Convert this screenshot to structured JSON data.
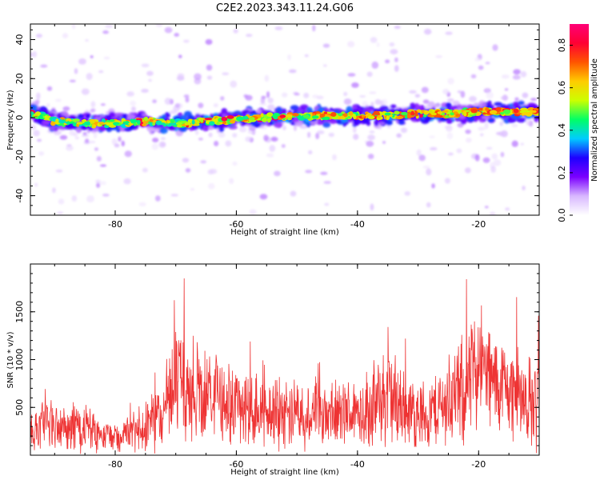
{
  "title": "C2E2.2023.343.11.24.G06",
  "chart_data": [
    {
      "type": "heatmap",
      "xlabel": "Height of straight line (km)",
      "ylabel": "Frequency (Hz)",
      "xlim": [
        -94,
        -10
      ],
      "ylim": [
        -50,
        48
      ],
      "xticks": [
        -80,
        -60,
        -40,
        -20
      ],
      "yticks": [
        -40,
        -20,
        0,
        20,
        40
      ],
      "colorbar": {
        "label": "Normalized spectral amplitude",
        "range": [
          0,
          0.9
        ],
        "ticks": [
          0.0,
          0.2,
          0.4,
          0.6,
          0.8
        ],
        "colors": [
          "#ffffff",
          "#d8b8ff",
          "#7b00ff",
          "#1e00ff",
          "#00ccff",
          "#00ff66",
          "#ccff00",
          "#ffcc00",
          "#ff5500",
          "#ff0033",
          "#ff0077"
        ]
      },
      "ridge": {
        "description_points_x": [
          -93,
          -90,
          -85,
          -80,
          -75,
          -70,
          -65,
          -60,
          -55,
          -50,
          -45,
          -40,
          -35,
          -30,
          -25,
          -20,
          -15,
          -10
        ],
        "frequency_hz": [
          2,
          -2,
          -3,
          -3,
          -2,
          -3,
          -2,
          -1,
          0,
          1,
          1,
          1,
          1,
          2,
          2,
          3,
          3,
          3
        ]
      }
    },
    {
      "type": "line",
      "xlabel": "Height of straight line (km)",
      "ylabel": "SNR (10 * v/v)",
      "xlim": [
        -94,
        -10
      ],
      "ylim": [
        0,
        2000
      ],
      "xticks": [
        -80,
        -60,
        -40,
        -20
      ],
      "yticks": [
        500,
        1000,
        1500
      ],
      "line_color": "#ee3333",
      "envelope": {
        "x": [
          -94,
          -90,
          -85,
          -82,
          -78,
          -75,
          -72,
          -70,
          -68,
          -65,
          -62,
          -60,
          -57,
          -55,
          -52,
          -50,
          -47,
          -45,
          -42,
          -40,
          -37,
          -35,
          -32,
          -30,
          -28,
          -25,
          -22,
          -20,
          -18,
          -15,
          -12,
          -10
        ],
        "mean": [
          260,
          300,
          260,
          200,
          220,
          320,
          450,
          800,
          620,
          650,
          560,
          540,
          460,
          430,
          470,
          480,
          420,
          400,
          430,
          460,
          520,
          620,
          480,
          420,
          440,
          560,
          700,
          1000,
          760,
          700,
          560,
          560
        ],
        "amp": [
          250,
          300,
          260,
          180,
          200,
          280,
          420,
          650,
          520,
          520,
          460,
          440,
          400,
          380,
          400,
          420,
          380,
          360,
          380,
          420,
          480,
          600,
          420,
          380,
          400,
          480,
          650,
          700,
          600,
          520,
          480,
          600
        ]
      }
    }
  ]
}
